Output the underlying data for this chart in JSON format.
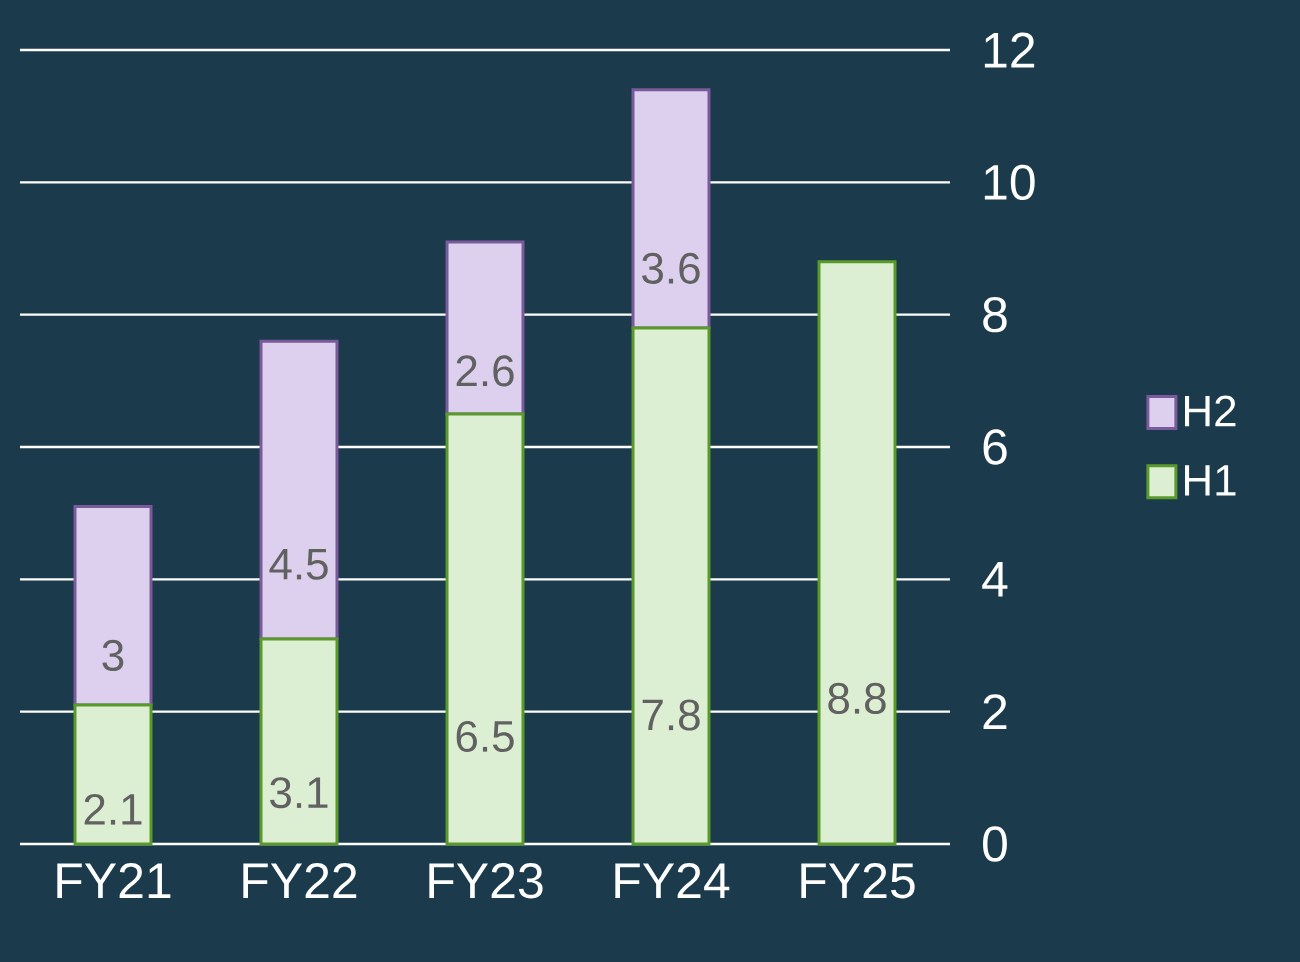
{
  "chart_data": {
    "type": "bar",
    "stacked": true,
    "categories": [
      "FY21",
      "FY22",
      "FY23",
      "FY24",
      "FY25"
    ],
    "series": [
      {
        "name": "H1",
        "color": "#dcefd2",
        "values": [
          2.1,
          3.1,
          6.5,
          7.8,
          8.8
        ]
      },
      {
        "name": "H2",
        "color": "#ddd0ee",
        "values": [
          3,
          4.5,
          2.6,
          3.6,
          null
        ]
      }
    ],
    "ylim": [
      0,
      12
    ],
    "yticks": [
      0,
      2,
      4,
      6,
      8,
      10,
      12
    ],
    "grid": "y",
    "legend": "right",
    "data_labels": true
  }
}
